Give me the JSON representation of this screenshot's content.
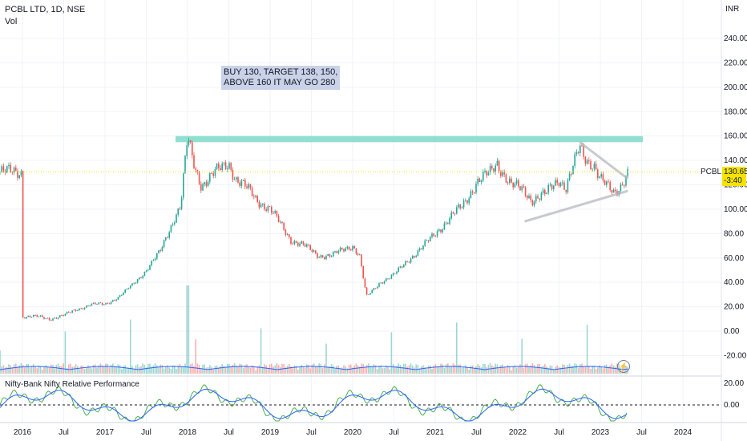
{
  "header": {
    "symbol_line": "PCBL LTD, 1D, NSE",
    "volume_label": "Vol",
    "indicator_label": "Nifty-Bank Nifty Relative Performance",
    "currency": "INR"
  },
  "annotation": {
    "line1": "BUY 130, TARGET 138, 150,",
    "line2": "ABOVE 160 IT MAY GO 280"
  },
  "price_tag": {
    "symbol": "PCBL",
    "price": "130.65",
    "time_left": "-3:40"
  },
  "colors": {
    "up": "#26a69a",
    "down": "#ef5350",
    "volume_ma": "#2962ff",
    "zone": "#7dd9c9",
    "annotation_bg": "#c9d2e8",
    "price_tag_bg": "#f5e400",
    "indicator_green": "#4caf50",
    "indicator_blue": "#2962ff"
  },
  "chart_data": {
    "type": "candlestick",
    "x_tick_labels": [
      "2016",
      "Jul",
      "2017",
      "Jul",
      "2018",
      "Jul",
      "2019",
      "Jul",
      "2020",
      "Jul",
      "2021",
      "Jul",
      "2022",
      "Jul",
      "2023",
      "Jul",
      "2024"
    ],
    "y_tick_labels": [
      "240.00",
      "220.00",
      "200.00",
      "180.00",
      "160.00",
      "140.00",
      "120.00",
      "100.00",
      "80.00",
      "60.00",
      "40.00",
      "20.00",
      "0.00",
      "-20.00"
    ],
    "y_ticks": [
      240,
      220,
      200,
      180,
      160,
      140,
      120,
      100,
      80,
      60,
      40,
      20,
      0,
      -20
    ],
    "indicator_tick_labels": [
      "20.00",
      "0.00"
    ],
    "indicator_ticks": [
      20,
      0
    ],
    "price_path": [
      [
        "2016-01",
        12
      ],
      [
        "2016-03",
        12
      ],
      [
        "2016-05",
        10
      ],
      [
        "2016-07",
        13
      ],
      [
        "2016-09",
        18
      ],
      [
        "2016-11",
        22
      ],
      [
        "2017-01",
        22
      ],
      [
        "2017-03",
        28
      ],
      [
        "2017-05",
        38
      ],
      [
        "2017-07",
        50
      ],
      [
        "2017-09",
        65
      ],
      [
        "2017-11",
        92
      ],
      [
        "2017-12",
        103
      ],
      [
        "2018-01",
        158
      ],
      [
        "2018-02",
        135
      ],
      [
        "2018-03",
        120
      ],
      [
        "2018-05",
        130
      ],
      [
        "2018-07",
        138
      ],
      [
        "2018-08",
        125
      ],
      [
        "2018-10",
        115
      ],
      [
        "2018-11",
        108
      ],
      [
        "2019-01",
        100
      ],
      [
        "2019-02",
        92
      ],
      [
        "2019-04",
        75
      ],
      [
        "2019-06",
        70
      ],
      [
        "2019-08",
        62
      ],
      [
        "2019-10",
        62
      ],
      [
        "2019-12",
        68
      ],
      [
        "2020-01",
        70
      ],
      [
        "2020-02",
        62
      ],
      [
        "2020-03",
        28
      ],
      [
        "2020-05",
        40
      ],
      [
        "2020-07",
        46
      ],
      [
        "2020-09",
        58
      ],
      [
        "2020-11",
        68
      ],
      [
        "2021-01",
        80
      ],
      [
        "2021-03",
        92
      ],
      [
        "2021-05",
        103
      ],
      [
        "2021-07",
        122
      ],
      [
        "2021-09",
        130
      ],
      [
        "2021-10",
        138
      ],
      [
        "2021-12",
        120
      ],
      [
        "2022-02",
        115
      ],
      [
        "2022-03",
        108
      ],
      [
        "2022-05",
        112
      ],
      [
        "2022-07",
        125
      ],
      [
        "2022-08",
        118
      ],
      [
        "2022-10",
        150
      ],
      [
        "2022-11",
        140
      ],
      [
        "2022-12",
        138
      ],
      [
        "2023-01",
        125
      ],
      [
        "2023-02",
        118
      ],
      [
        "2023-03",
        113
      ],
      [
        "2023-04",
        120
      ],
      [
        "2023-05",
        130.65
      ]
    ],
    "resistance_zone": [
      155,
      160
    ],
    "triangle_upper": [
      [
        "2022-10",
        155
      ],
      [
        "2023-05",
        125
      ]
    ],
    "triangle_lower": [
      [
        "2022-02",
        90
      ],
      [
        "2023-05",
        115
      ]
    ],
    "last_price": 130.65
  }
}
